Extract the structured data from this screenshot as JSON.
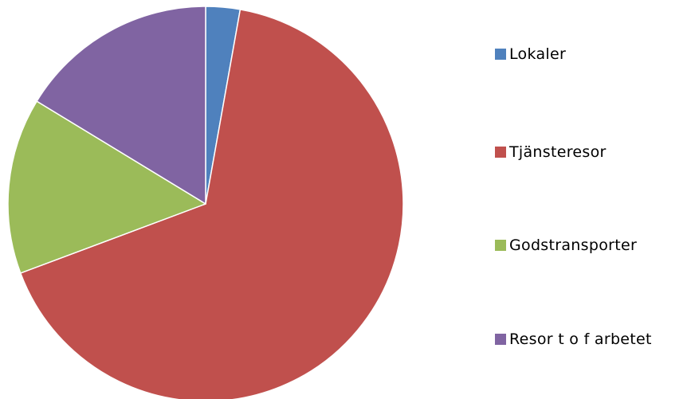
{
  "chart_data": {
    "type": "pie",
    "title": "",
    "legend_position": "right",
    "slices": [
      {
        "label": "Lokaler",
        "value": 2.8,
        "color": "#4f81bd"
      },
      {
        "label": "Tjänsteresor",
        "value": 66.5,
        "color": "#c0504d"
      },
      {
        "label": "Godstransporter",
        "value": 14.4,
        "color": "#9bbb59"
      },
      {
        "label": "Resor t o f arbetet",
        "value": 16.3,
        "color": "#8064a2"
      }
    ]
  }
}
